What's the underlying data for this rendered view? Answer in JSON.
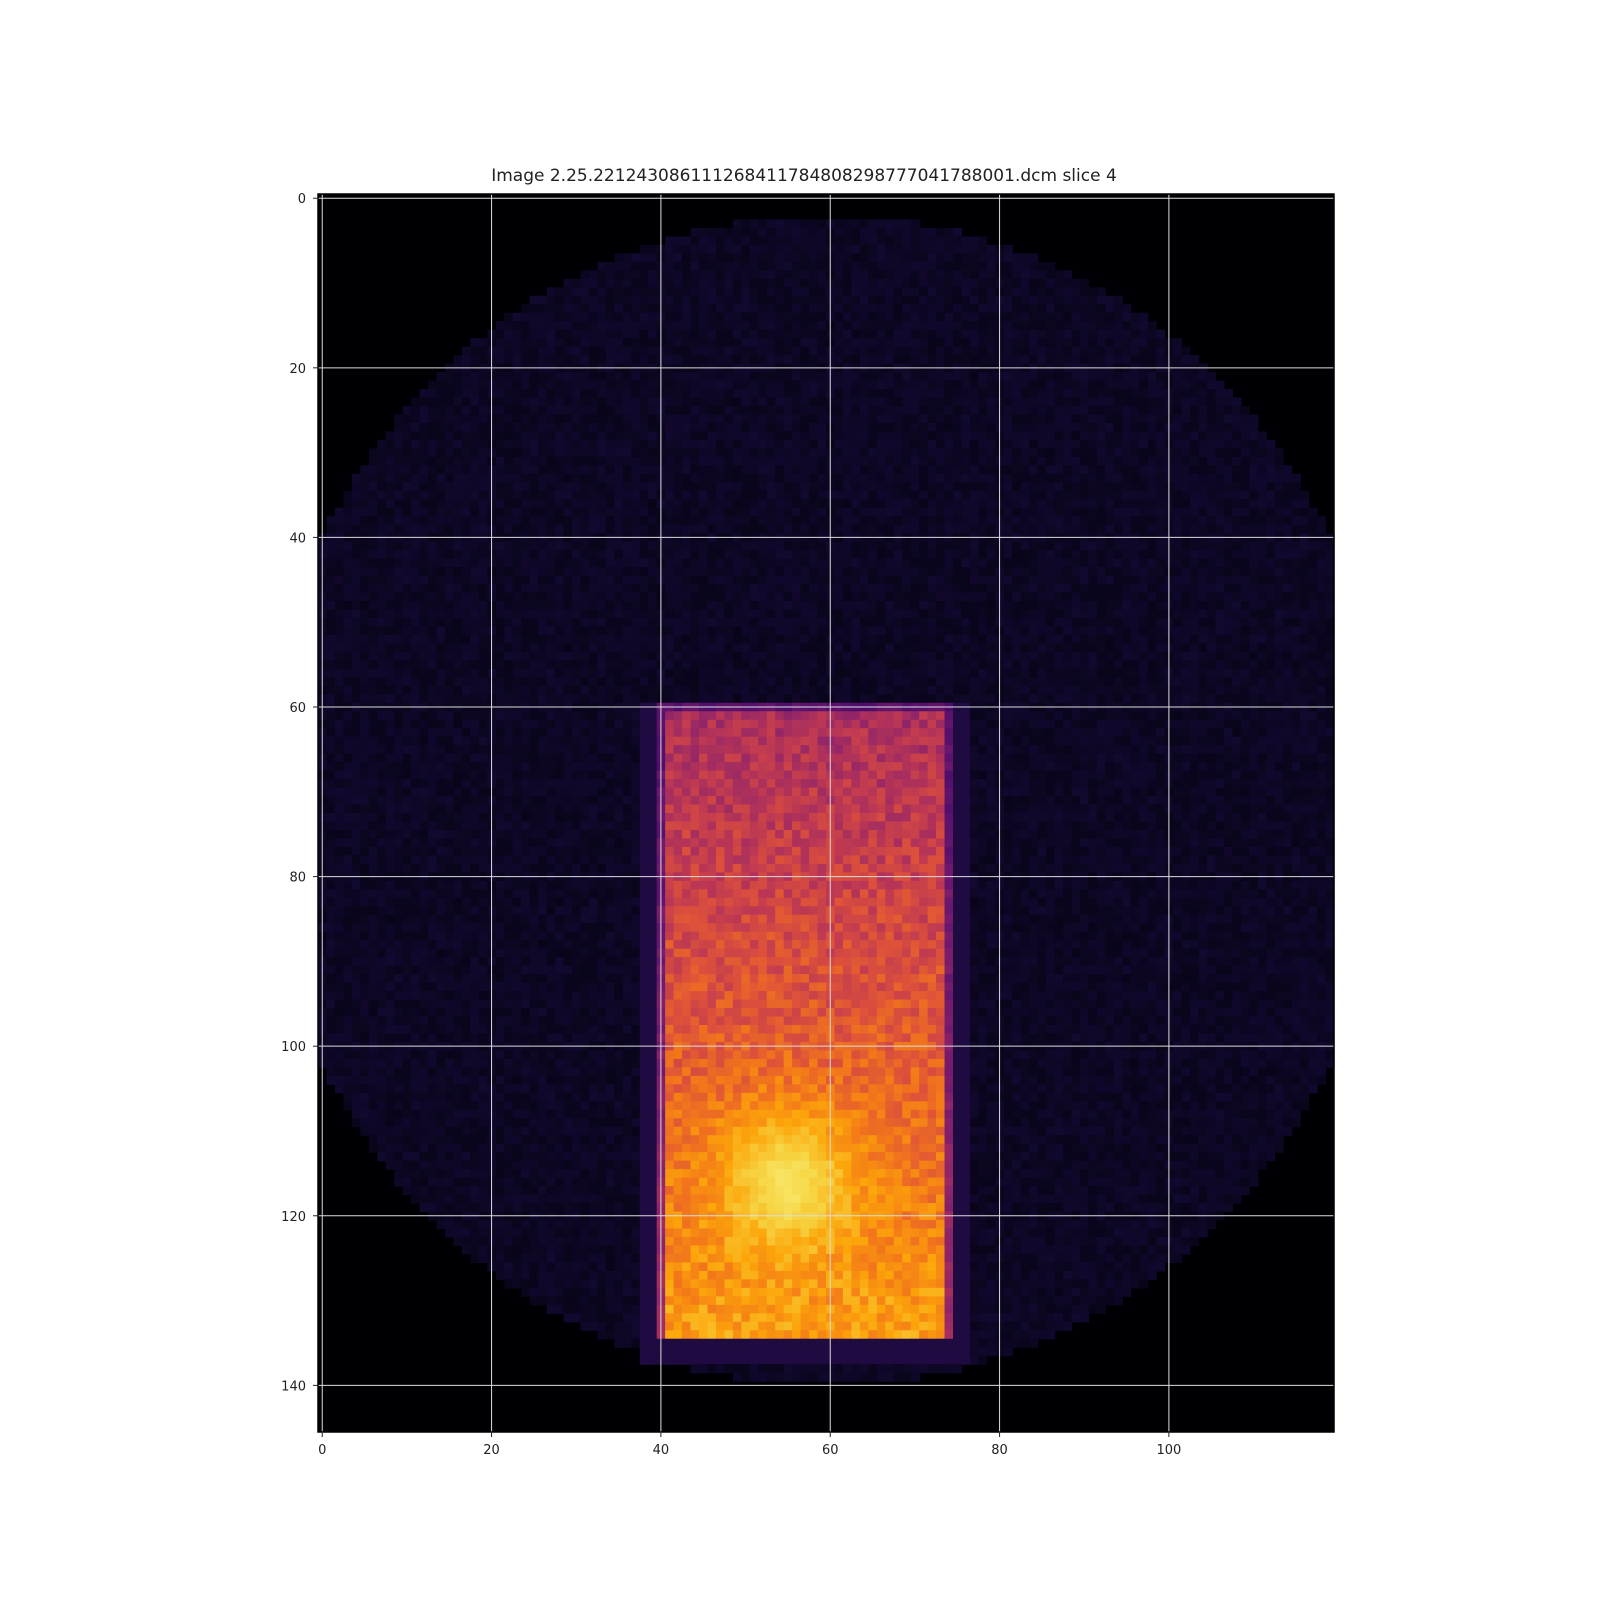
{
  "chart_data": {
    "type": "heatmap",
    "title": "Image 2.25.221243086111268411784808298777041788001.dcm slice 4",
    "xlabel": "",
    "ylabel": "",
    "colormap": "inferno",
    "xlim": [
      -0.5,
      119.5
    ],
    "ylim": [
      145.5,
      -0.5
    ],
    "x_ticks": [
      0,
      20,
      40,
      60,
      80,
      100
    ],
    "y_ticks": [
      0,
      20,
      40,
      60,
      80,
      100,
      120,
      140
    ],
    "grid": true,
    "grid_color": "#dddddd",
    "background_region": {
      "shape": "rounded body outline",
      "x_range": [
        0,
        119
      ],
      "y_range": [
        2,
        140
      ],
      "intensity": 0.06
    },
    "bright_region": {
      "shape": "rectangle",
      "x_range": [
        40,
        74
      ],
      "y_range": [
        60,
        134
      ],
      "intensity_top": 0.45,
      "intensity_bottom": 0.78
    },
    "hot_spot": {
      "center_x": 55,
      "center_y": 116,
      "intensity": 0.97
    }
  },
  "colors": {
    "background": "#ffffff",
    "axes_frame": "#000000",
    "text": "#222222"
  }
}
